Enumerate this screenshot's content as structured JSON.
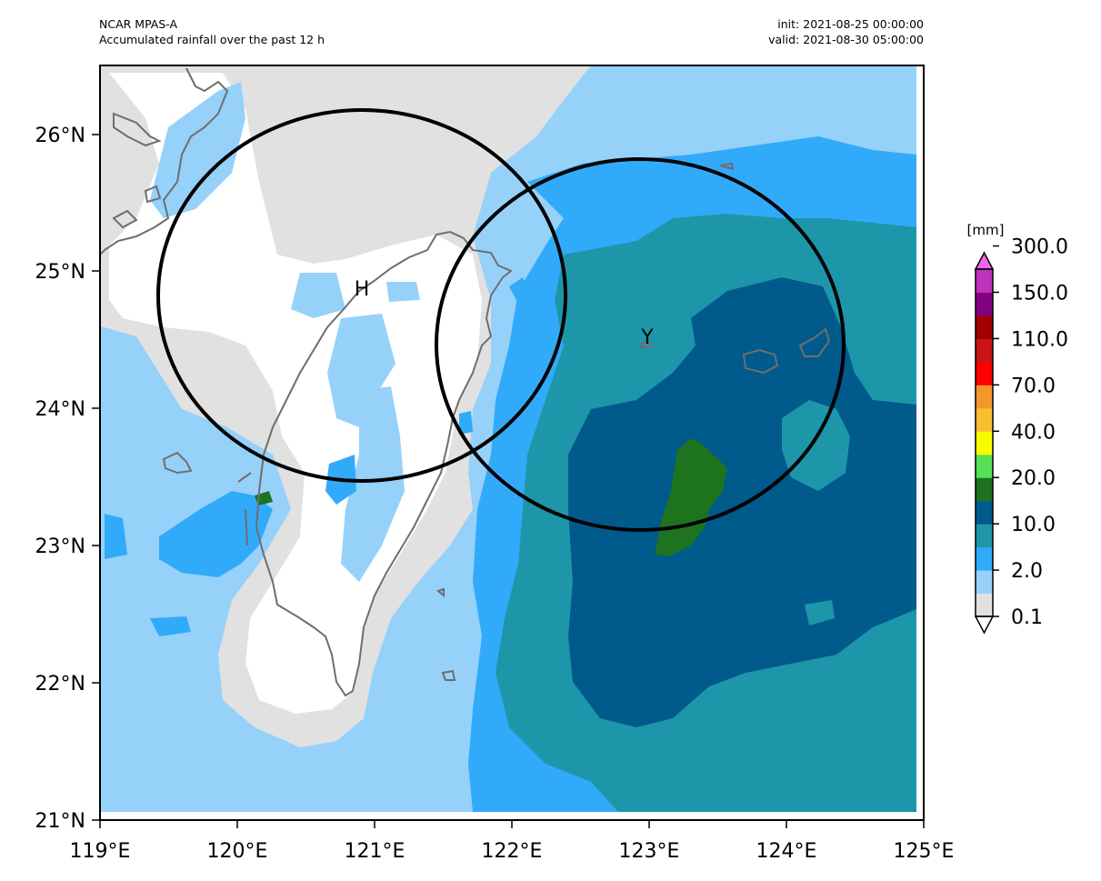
{
  "header": {
    "model": "NCAR MPAS-A",
    "description": "Accumulated rainfall over the past 12 h",
    "init": "init: 2021-08-25 00:00:00",
    "valid": "valid: 2021-08-30 05:00:00"
  },
  "axes": {
    "x_ticks": [
      "119°E",
      "120°E",
      "121°E",
      "122°E",
      "123°E",
      "124°E",
      "125°E"
    ],
    "y_ticks": [
      "21°N",
      "22°N",
      "23°N",
      "24°N",
      "25°N",
      "26°N"
    ],
    "lon_range": [
      119,
      125
    ],
    "lat_range": [
      21,
      26.5
    ]
  },
  "colorbar": {
    "unit": "[mm]",
    "tick_labels": [
      "0.1",
      "2.0",
      "10.0",
      "20.0",
      "40.0",
      "70.0",
      "110.0",
      "150.0",
      "300.0"
    ],
    "levels": [
      "0.1",
      "1",
      "2.0",
      "5",
      "10.0",
      "15",
      "20.0",
      "30",
      "40.0",
      "50",
      "70.0",
      "90",
      "110.0",
      "130",
      "150.0",
      "200",
      "300.0"
    ],
    "colors": [
      "#ffffff",
      "#e1e1e1",
      "#96d1fa",
      "#32aafa",
      "#1e96aa",
      "#005a8c",
      "#1e731e",
      "#55e155",
      "#fafa00",
      "#fabe32",
      "#f5962d",
      "#ff0000",
      "#c81414",
      "#a00000",
      "#820082",
      "#be32be",
      "#f064f0"
    ]
  },
  "markers": [
    {
      "label": "H",
      "lon": 120.93,
      "lat": 24.83
    },
    {
      "label": "Y",
      "lon": 122.97,
      "lat": 24.47
    }
  ],
  "circles": [
    {
      "center_lon": 120.93,
      "center_lat": 24.83
    },
    {
      "center_lon": 122.97,
      "center_lat": 24.47
    }
  ]
}
